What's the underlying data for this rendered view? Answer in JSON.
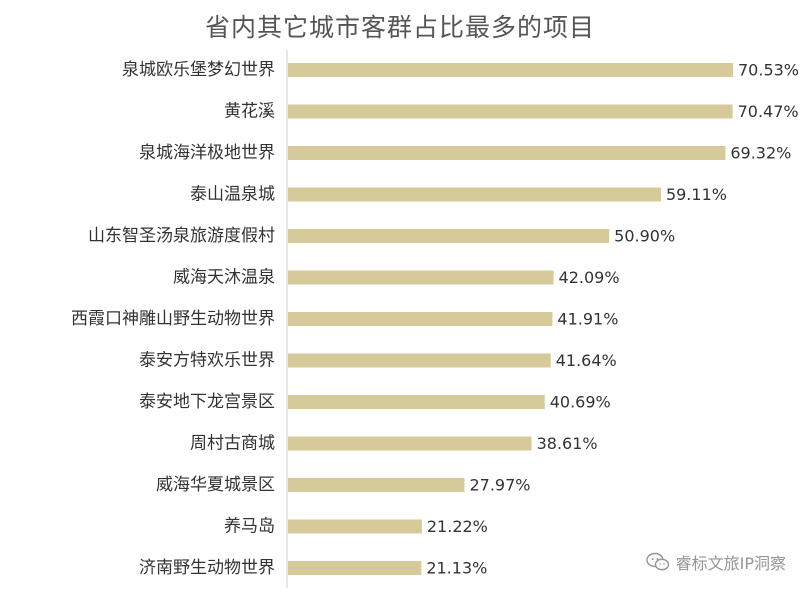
{
  "chart_data": {
    "type": "bar",
    "orientation": "horizontal",
    "title": "省内其它城市客群占比最多的项目",
    "categories": [
      "泉城欧乐堡梦幻世界",
      "黄花溪",
      "泉城海洋极地世界",
      "泰山温泉城",
      "山东智圣汤泉旅游度假村",
      "威海天沐温泉",
      "西霞口神雕山野生动物世界",
      "泰安方特欢乐世界",
      "泰安地下龙宫景区",
      "周村古商城",
      "威海华夏城景区",
      "养马岛",
      "济南野生动物世界"
    ],
    "values": [
      70.53,
      70.47,
      69.32,
      59.11,
      50.9,
      42.09,
      41.91,
      41.64,
      40.69,
      38.61,
      27.97,
      21.22,
      21.13
    ],
    "value_labels": [
      "70.53%",
      "70.47%",
      "69.32%",
      "59.11%",
      "50.90%",
      "42.09%",
      "41.91%",
      "41.64%",
      "40.69%",
      "38.61%",
      "27.97%",
      "21.22%",
      "21.13%"
    ],
    "unit": "%",
    "xlim": [
      0,
      70.53
    ],
    "bar_color": "#d6c99a",
    "grid": false,
    "legend": "none"
  },
  "watermark": {
    "text": "睿标文旅IP洞察",
    "icon": "wechat-icon"
  }
}
